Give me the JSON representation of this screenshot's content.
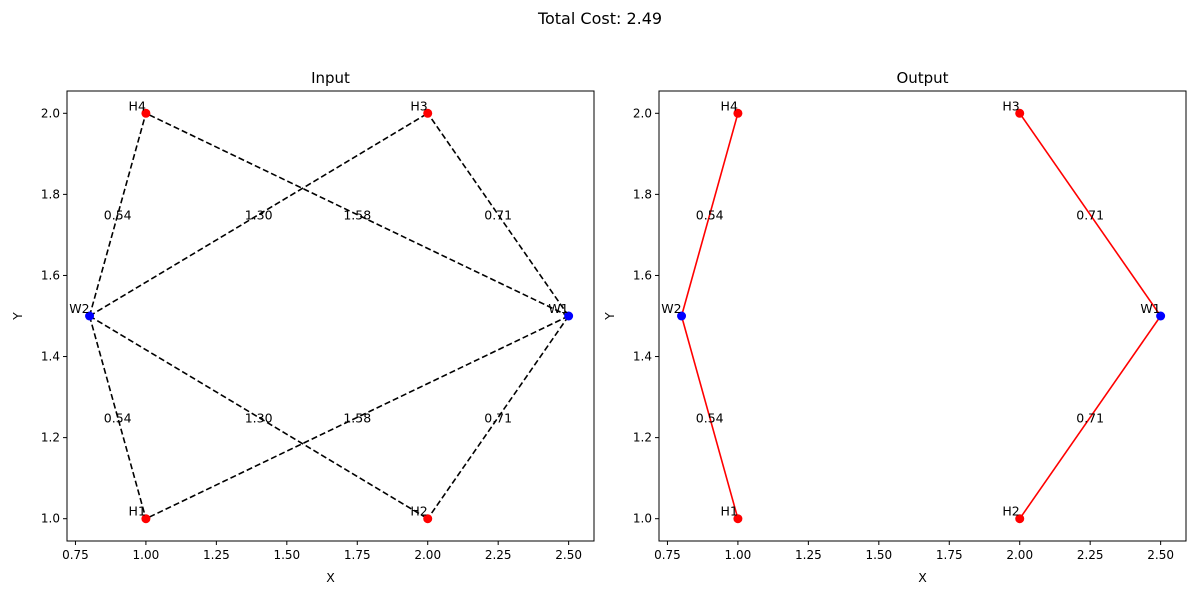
{
  "figure": {
    "suptitle": "Total Cost: 2.49"
  },
  "chart_data": [
    {
      "type": "scatter",
      "title": "Input",
      "xlabel": "X",
      "ylabel": "Y",
      "xlim": [
        0.72,
        2.59
      ],
      "ylim": [
        0.945,
        2.055
      ],
      "xticks": [
        "0.75",
        "1.00",
        "1.25",
        "1.50",
        "1.75",
        "2.00",
        "2.25",
        "2.50"
      ],
      "yticks": [
        "1.0",
        "1.2",
        "1.4",
        "1.6",
        "1.8",
        "2.0"
      ],
      "xtick_values": [
        0.75,
        1.0,
        1.25,
        1.5,
        1.75,
        2.0,
        2.25,
        2.5
      ],
      "ytick_values": [
        1.0,
        1.2,
        1.4,
        1.6,
        1.8,
        2.0
      ],
      "grid": false,
      "points": [
        {
          "label": "W1",
          "x": 2.5,
          "y": 1.5,
          "color": "#0000ff"
        },
        {
          "label": "W2",
          "x": 0.8,
          "y": 1.5,
          "color": "#0000ff"
        },
        {
          "label": "H1",
          "x": 1.0,
          "y": 1.0,
          "color": "#ff0000"
        },
        {
          "label": "H2",
          "x": 2.0,
          "y": 1.0,
          "color": "#ff0000"
        },
        {
          "label": "H3",
          "x": 2.0,
          "y": 2.0,
          "color": "#ff0000"
        },
        {
          "label": "H4",
          "x": 1.0,
          "y": 2.0,
          "color": "#ff0000"
        }
      ],
      "edges": [
        {
          "from": "W1",
          "to": "H1",
          "label": "1.58"
        },
        {
          "from": "W1",
          "to": "H2",
          "label": "0.71"
        },
        {
          "from": "W1",
          "to": "H3",
          "label": "0.71"
        },
        {
          "from": "W1",
          "to": "H4",
          "label": "1.58"
        },
        {
          "from": "W2",
          "to": "H1",
          "label": "0.54"
        },
        {
          "from": "W2",
          "to": "H2",
          "label": "1.30"
        },
        {
          "from": "W2",
          "to": "H3",
          "label": "1.30"
        },
        {
          "from": "W2",
          "to": "H4",
          "label": "0.54"
        }
      ],
      "edge_style": "dashed",
      "edge_color": "#000000"
    },
    {
      "type": "scatter",
      "title": "Output",
      "xlabel": "X",
      "ylabel": "Y",
      "xlim": [
        0.72,
        2.59
      ],
      "ylim": [
        0.945,
        2.055
      ],
      "xticks": [
        "0.75",
        "1.00",
        "1.25",
        "1.50",
        "1.75",
        "2.00",
        "2.25",
        "2.50"
      ],
      "yticks": [
        "1.0",
        "1.2",
        "1.4",
        "1.6",
        "1.8",
        "2.0"
      ],
      "xtick_values": [
        0.75,
        1.0,
        1.25,
        1.5,
        1.75,
        2.0,
        2.25,
        2.5
      ],
      "ytick_values": [
        1.0,
        1.2,
        1.4,
        1.6,
        1.8,
        2.0
      ],
      "grid": false,
      "points": [
        {
          "label": "W1",
          "x": 2.5,
          "y": 1.5,
          "color": "#0000ff"
        },
        {
          "label": "W2",
          "x": 0.8,
          "y": 1.5,
          "color": "#0000ff"
        },
        {
          "label": "H1",
          "x": 1.0,
          "y": 1.0,
          "color": "#ff0000"
        },
        {
          "label": "H2",
          "x": 2.0,
          "y": 1.0,
          "color": "#ff0000"
        },
        {
          "label": "H3",
          "x": 2.0,
          "y": 2.0,
          "color": "#ff0000"
        },
        {
          "label": "H4",
          "x": 1.0,
          "y": 2.0,
          "color": "#ff0000"
        }
      ],
      "edges": [
        {
          "from": "W1",
          "to": "H2",
          "label": "0.71"
        },
        {
          "from": "W1",
          "to": "H3",
          "label": "0.71"
        },
        {
          "from": "W2",
          "to": "H1",
          "label": "0.54"
        },
        {
          "from": "W2",
          "to": "H4",
          "label": "0.54"
        }
      ],
      "edge_style": "solid",
      "edge_color": "#ff0000"
    }
  ]
}
